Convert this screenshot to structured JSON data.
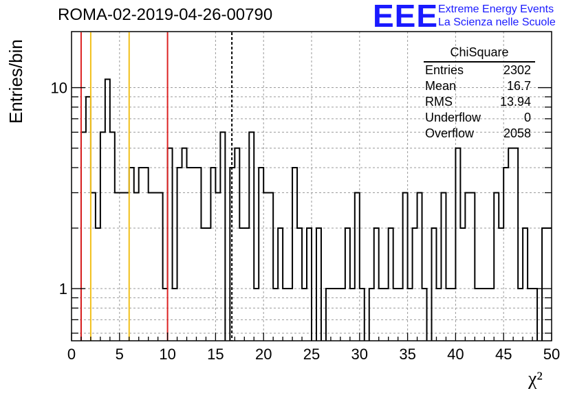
{
  "title": "ROMA-02-2019-04-26-00790",
  "logo": {
    "mark": "EEE",
    "line1": "Extreme Energy Events",
    "line2": "La Scienza nelle Scuole",
    "color": "#1a1aff"
  },
  "stats_box": {
    "title": "ChiSquare",
    "rows": [
      {
        "label": "Entries",
        "value": "2302"
      },
      {
        "label": "Mean",
        "value": "16.7"
      },
      {
        "label": "RMS",
        "value": "13.94"
      },
      {
        "label": "Underflow",
        "value": "0"
      },
      {
        "label": "Overflow",
        "value": "2058"
      }
    ]
  },
  "chart_data": {
    "type": "histogram-step",
    "xlabel": "χ²",
    "ylabel": "Entries/bin",
    "xlim": [
      0,
      50
    ],
    "ylim": [
      0.55,
      19
    ],
    "yscale": "log",
    "grid": true,
    "bin_width": 0.5,
    "x_ticks": [
      "0",
      "5",
      "10",
      "15",
      "20",
      "25",
      "30",
      "35",
      "40",
      "45",
      "50"
    ],
    "y_tick_labels": [
      {
        "value": 1,
        "label": "1"
      },
      {
        "value": 10,
        "label": "10"
      }
    ],
    "counts": [
      0,
      0,
      6,
      9,
      3,
      2,
      6,
      11,
      6,
      3,
      3,
      3,
      4,
      3,
      4,
      4,
      3,
      3,
      3,
      1,
      5,
      1,
      4,
      5,
      4,
      4,
      4,
      2,
      2,
      4,
      3,
      6,
      0,
      4,
      5,
      2,
      2,
      6,
      1,
      4,
      3,
      3,
      1,
      2,
      1,
      1,
      4,
      2,
      1,
      2,
      0,
      2,
      0,
      1,
      1,
      1,
      1,
      2,
      1,
      3,
      1,
      0,
      1,
      2,
      1,
      1,
      2,
      1,
      1,
      3,
      1,
      2,
      3,
      1,
      0,
      2,
      1,
      3,
      1,
      1,
      5,
      2,
      3,
      3,
      1,
      1,
      1,
      1,
      3,
      2,
      4,
      5,
      5,
      1,
      2,
      1,
      1,
      0,
      2,
      2
    ],
    "vertical_lines": [
      {
        "x": 1,
        "color": "#dd2222",
        "style": "solid"
      },
      {
        "x": 2,
        "color": "#f2c01a",
        "style": "solid"
      },
      {
        "x": 6,
        "color": "#f2c01a",
        "style": "solid"
      },
      {
        "x": 10,
        "color": "#dd2222",
        "style": "solid"
      },
      {
        "x": 16.7,
        "color": "#000000",
        "style": "dashed"
      }
    ]
  }
}
